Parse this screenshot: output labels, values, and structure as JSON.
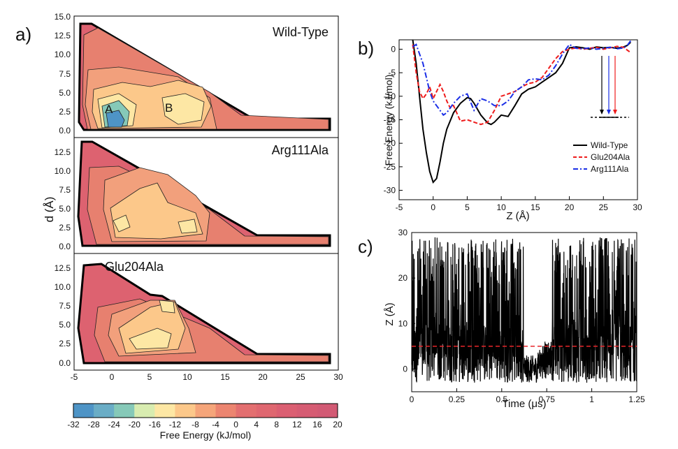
{
  "panel_labels": {
    "a": "a)",
    "b": "b)",
    "c": "c)"
  },
  "colors": {
    "wt": "#000000",
    "glu": "#ee1c1c",
    "arg": "#1a2ee6",
    "dashed_line": "#e8262a",
    "colorbar": [
      "#4e94c6",
      "#6aadc6",
      "#86c9b8",
      "#d8ecb0",
      "#fde7a4",
      "#fcc88a",
      "#f5a57a",
      "#ec8570",
      "#e36f70",
      "#df6770",
      "#db5f72",
      "#d65c73",
      "#d25a74"
    ],
    "contour_fill": {
      "deep": "#4e94c6",
      "mid": "#86c9b8",
      "light": "#fde7a4",
      "orange": "#fcc88a",
      "salmon": "#f2a07c",
      "red": "#e7806f",
      "dark": "#dd6270"
    }
  },
  "chart_data": [
    {
      "type": "heatmap",
      "panel": "a",
      "title": "Wild-Type",
      "xlabel": "",
      "ylabel": "d (Å)",
      "xlim": [
        -5,
        30
      ],
      "ylim": [
        -0.5,
        15
      ],
      "yticks": [
        "15.0",
        "12.5",
        "10.0",
        "7.5",
        "5.0",
        "2.5",
        "0.0"
      ],
      "annotations": [
        "A",
        "B"
      ]
    },
    {
      "type": "heatmap",
      "panel": "a",
      "title": "Arg111Ala",
      "ylabel": "d (Å)",
      "xlim": [
        -5,
        30
      ],
      "ylim": [
        -0.5,
        14
      ],
      "yticks": [
        "12.5",
        "10.0",
        "7.5",
        "5.0",
        "2.5",
        "0.0"
      ]
    },
    {
      "type": "heatmap",
      "panel": "a",
      "title": "Glu204Ala",
      "ylabel": "d (Å)",
      "xlim": [
        -5,
        30
      ],
      "ylim": [
        -0.5,
        14
      ],
      "yticks": [
        "12.5",
        "10.0",
        "7.5",
        "5.0",
        "2.5",
        "0.0"
      ],
      "xticks": [
        "-5",
        "0",
        "5",
        "10",
        "15",
        "20",
        "25",
        "30"
      ]
    },
    {
      "type": "colorbar",
      "label": "Free Energy (kJ/mol)",
      "ticks": [
        "-32",
        "-28",
        "-24",
        "-20",
        "-16",
        "-12",
        "-8",
        "-4",
        "0",
        "4",
        "8",
        "12",
        "16",
        "20"
      ],
      "range": [
        -32,
        20
      ]
    },
    {
      "type": "line",
      "panel": "b",
      "xlabel": "Z (Å)",
      "ylabel": "Free Energy (kJ/mol)",
      "xlim": [
        -5,
        30
      ],
      "ylim": [
        -32,
        2
      ],
      "xticks": [
        "-5",
        "0",
        "5",
        "10",
        "15",
        "20",
        "25",
        "30"
      ],
      "yticks": [
        "0",
        "-5",
        "-10",
        "-15",
        "-20",
        "-25",
        "-30"
      ],
      "legend_position": "bottom-right",
      "series": [
        {
          "name": "Wild-Type",
          "style": "solid",
          "color": "#000000",
          "x": [
            -3,
            -2.5,
            -2,
            -1.5,
            -1,
            -0.5,
            0,
            0.5,
            1,
            1.5,
            2,
            3,
            4,
            5,
            5.5,
            6,
            7,
            8,
            8.5,
            9,
            10,
            11,
            12,
            13,
            14,
            15,
            16,
            17,
            18,
            19,
            20,
            21,
            22,
            23,
            24,
            25,
            26,
            27,
            28,
            28.5,
            29
          ],
          "y": [
            2,
            -3,
            -10,
            -17,
            -22,
            -26,
            -28.3,
            -27.5,
            -24,
            -20,
            -17,
            -13.5,
            -11.5,
            -10.3,
            -10.5,
            -11.5,
            -14,
            -15.7,
            -16,
            -15.5,
            -14,
            -14.3,
            -12,
            -9.5,
            -8.5,
            -8,
            -7,
            -6,
            -5,
            -3,
            0.3,
            0.5,
            0.3,
            0,
            0.5,
            0.3,
            0.4,
            0.2,
            0.5,
            0.8,
            1.5
          ]
        },
        {
          "name": "Glu204Ala",
          "style": "dashed",
          "color": "#ee1c1c",
          "x": [
            -3,
            -2.5,
            -2,
            -1.5,
            -1,
            -0.5,
            0,
            0.5,
            1,
            1.5,
            2,
            2.5,
            3,
            4,
            5,
            6,
            7,
            8,
            9,
            10,
            11,
            12,
            13,
            14,
            15,
            16,
            17,
            18,
            19,
            20,
            21,
            22,
            23,
            24,
            25,
            26,
            27,
            28,
            28.5,
            29
          ],
          "y": [
            1,
            -5,
            -9,
            -10.5,
            -9.5,
            -8,
            -10.5,
            -9,
            -7.5,
            -9,
            -11,
            -12.5,
            -12,
            -15.3,
            -15,
            -15.5,
            -16,
            -15.5,
            -13,
            -10,
            -9.5,
            -9,
            -8,
            -7.3,
            -7,
            -6,
            -4,
            -2,
            -0.5,
            0,
            0.3,
            0,
            0.2,
            0.4,
            0,
            0.3,
            0.6,
            0.4,
            -0.2,
            -0.7
          ]
        },
        {
          "name": "Arg111Ala",
          "style": "dashdot",
          "color": "#1a2ee6",
          "x": [
            -3,
            -2.5,
            -2,
            -1.5,
            -1,
            -0.5,
            0,
            0.5,
            1,
            1.5,
            2,
            3,
            4,
            5,
            6,
            7,
            8,
            9,
            10,
            11,
            12,
            13,
            14,
            15,
            16,
            17,
            18,
            19,
            20,
            21,
            22,
            23,
            24,
            25,
            26,
            27,
            28,
            28.5,
            29
          ],
          "y": [
            0.5,
            1,
            -1,
            -3,
            -6,
            -9,
            -11,
            -12,
            -13,
            -14,
            -13.5,
            -11.5,
            -10,
            -9.5,
            -13,
            -10.5,
            -11,
            -12,
            -12,
            -11,
            -9,
            -8,
            -6.5,
            -6.3,
            -6.5,
            -5.5,
            -3.5,
            -1,
            1,
            0.2,
            0.1,
            0.3,
            0,
            0.2,
            0.4,
            0.1,
            0.3,
            0.8,
            1.8
          ]
        }
      ],
      "inset_arrows": {
        "colors": [
          "#000000",
          "#1a2ee6",
          "#ee1c1c"
        ]
      }
    },
    {
      "type": "line",
      "panel": "c",
      "xlabel": "Time (μs)",
      "ylabel": "Z (Å)",
      "xlim": [
        0,
        1.25
      ],
      "ylim": [
        -5,
        30
      ],
      "xticks": [
        "0",
        "0.25",
        "0.5",
        "0.75",
        "1",
        "1.25"
      ],
      "yticks": [
        "0",
        "10",
        "20",
        "30"
      ],
      "reference_line": {
        "y": 5,
        "style": "dashed",
        "color": "#e8262a"
      },
      "series": [
        {
          "name": "Z trajectory",
          "color": "#000000",
          "note": "rapid transitions between ~0 and ~29 Å; quiescent near 0 Å between 0.62 and 0.78 μs"
        }
      ]
    }
  ]
}
